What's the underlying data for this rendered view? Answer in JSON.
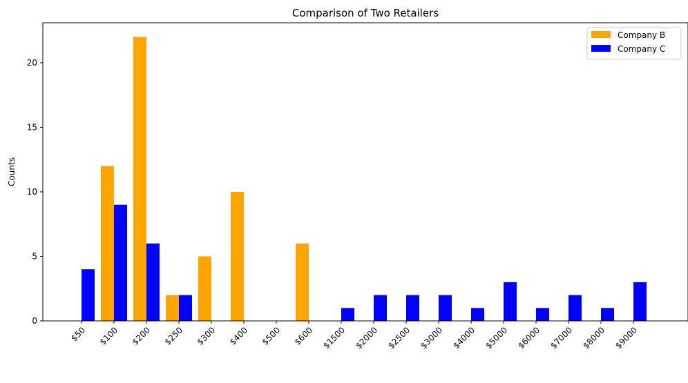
{
  "chart_data": {
    "type": "bar",
    "title": "Comparison of Two Retailers",
    "xlabel": "",
    "ylabel": "Counts",
    "ylim": [
      0,
      23.1
    ],
    "yticks": [
      0,
      5,
      10,
      15,
      20
    ],
    "grid": false,
    "legend_position": "top-right",
    "categories": [
      "$50",
      "$100",
      "$200",
      "$250",
      "$300",
      "$400",
      "$500",
      "$600",
      "$1500",
      "$2000",
      "$2500",
      "$3000",
      "$4000",
      "$5000",
      "$6000",
      "$7000",
      "$8000",
      "$9000"
    ],
    "series": [
      {
        "name": "Company B",
        "color": "#FFA500",
        "values": [
          0,
          12,
          22,
          2,
          5,
          10,
          0,
          6,
          0,
          0,
          0,
          0,
          0,
          0,
          0,
          0,
          0,
          0
        ]
      },
      {
        "name": "Company C",
        "color": "#0000FF",
        "values": [
          4,
          9,
          6,
          2,
          0,
          0,
          0,
          0,
          1,
          2,
          2,
          2,
          1,
          3,
          1,
          2,
          1,
          3
        ]
      }
    ]
  }
}
